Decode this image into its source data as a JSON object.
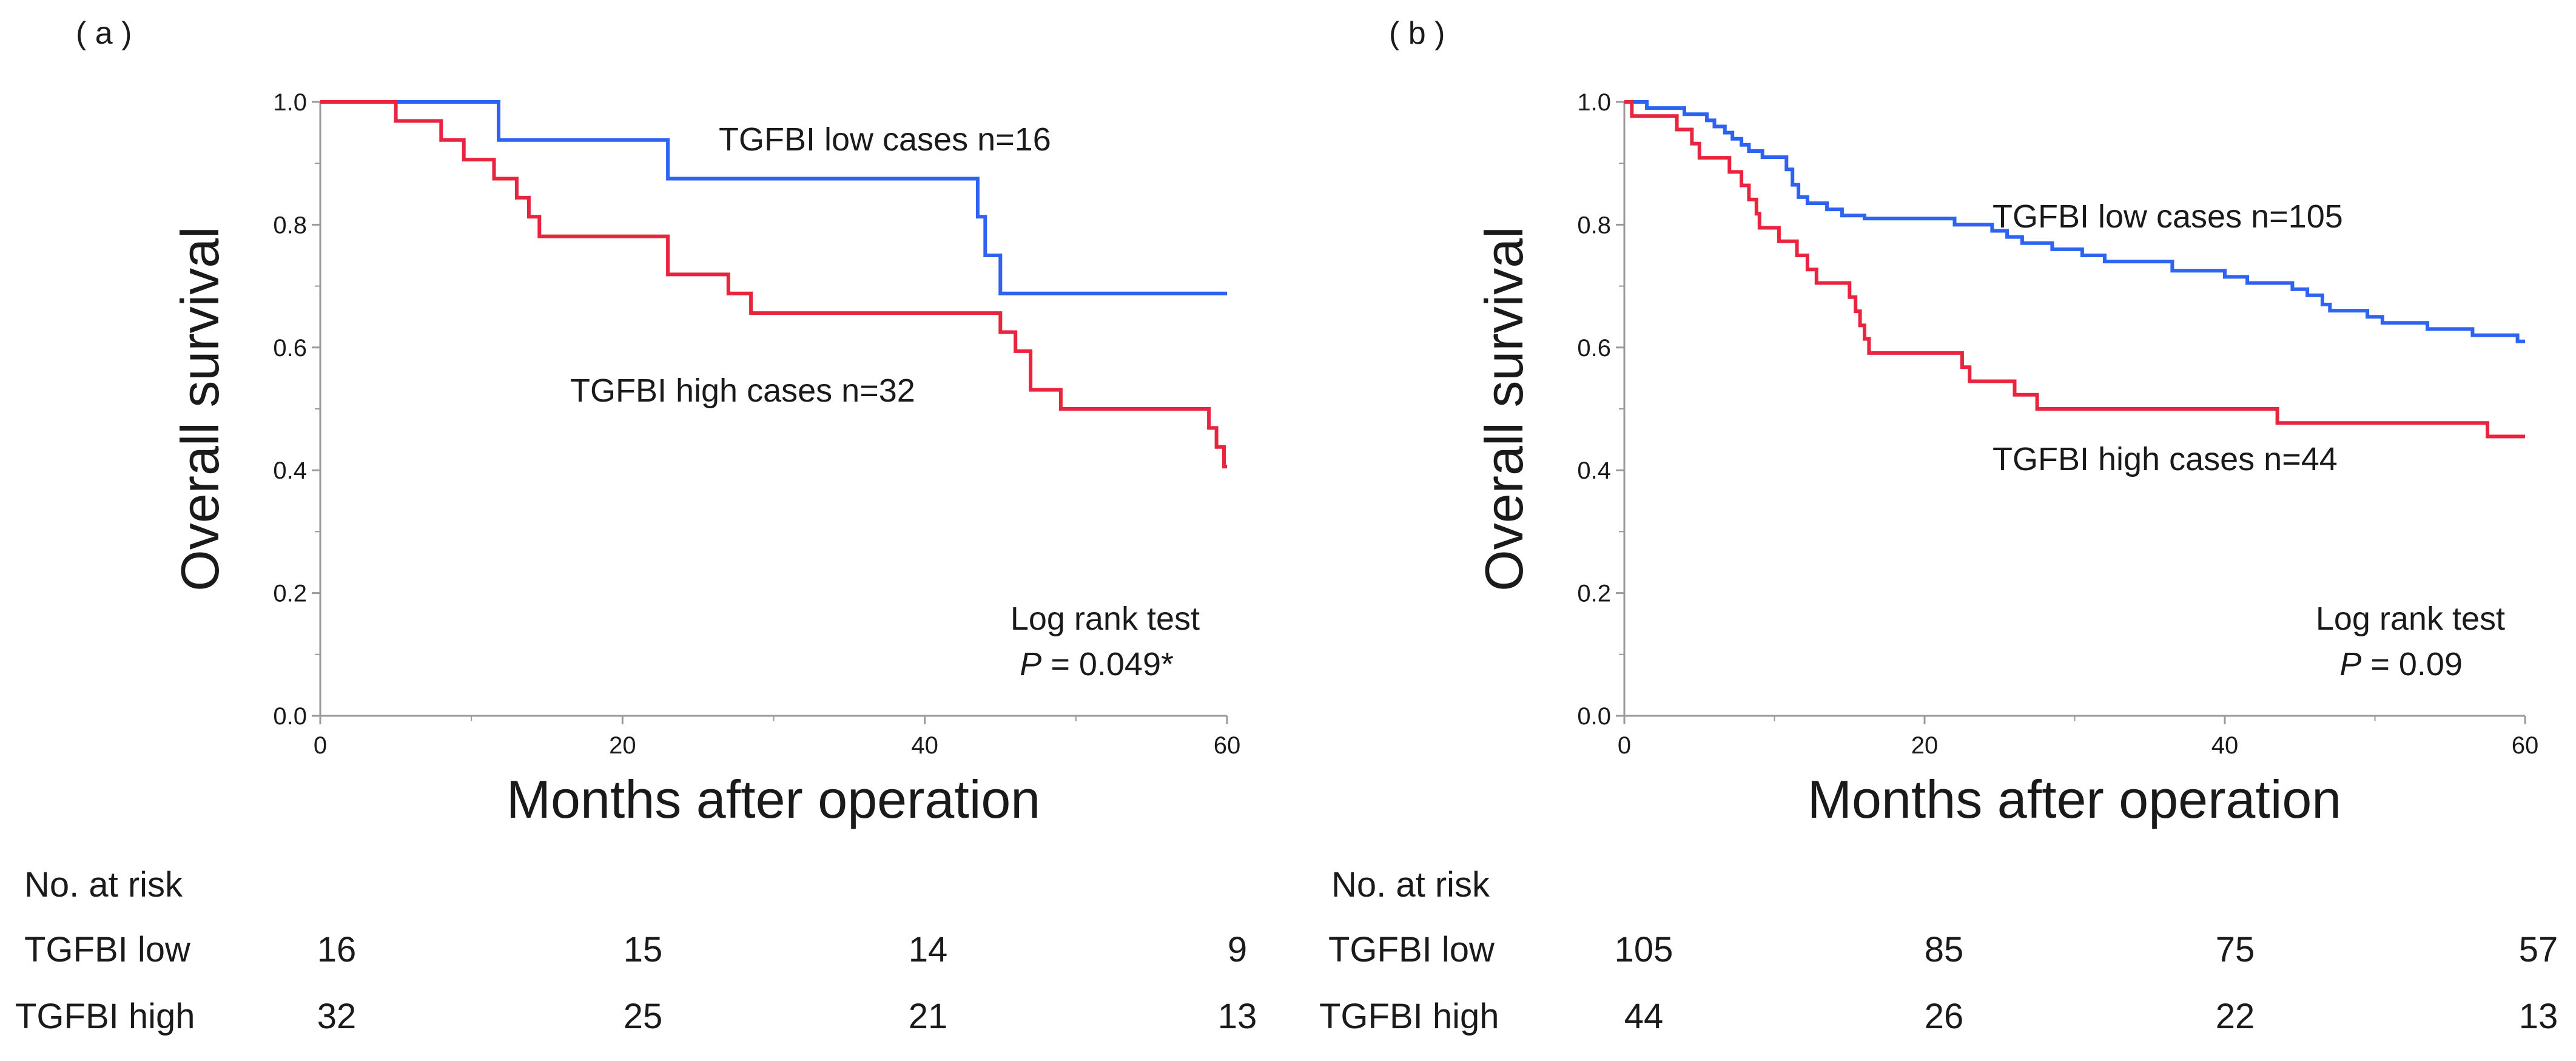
{
  "chart_data": [
    {
      "type": "line",
      "subtype": "kaplan-meier",
      "panel_label": "( a )",
      "xlabel": "Months after operation",
      "ylabel": "Overall survival",
      "xlim": [
        0,
        60
      ],
      "ylim": [
        0,
        1.0
      ],
      "x_ticks": [
        "0",
        "20",
        "40",
        "60"
      ],
      "y_ticks": [
        "0.0",
        "0.2",
        "0.4",
        "0.6",
        "0.8",
        "1.0"
      ],
      "series": [
        {
          "name": "TGFBI low cases n=16",
          "color": "#2e62f2",
          "points": [
            [
              0,
              1.0
            ],
            [
              11.8,
              1.0
            ],
            [
              11.8,
              0.938
            ],
            [
              23,
              0.938
            ],
            [
              23,
              0.875
            ],
            [
              43.5,
              0.875
            ],
            [
              43.5,
              0.813
            ],
            [
              44,
              0.813
            ],
            [
              44,
              0.75
            ],
            [
              45,
              0.75
            ],
            [
              45,
              0.688
            ],
            [
              60,
              0.688
            ]
          ]
        },
        {
          "name": "TGFBI high cases n=32",
          "color": "#e8243f",
          "points": [
            [
              0,
              1.0
            ],
            [
              5,
              1.0
            ],
            [
              5,
              0.969
            ],
            [
              8,
              0.969
            ],
            [
              8,
              0.938
            ],
            [
              9.5,
              0.938
            ],
            [
              9.5,
              0.906
            ],
            [
              11.5,
              0.906
            ],
            [
              11.5,
              0.875
            ],
            [
              13,
              0.875
            ],
            [
              13,
              0.844
            ],
            [
              13.8,
              0.844
            ],
            [
              13.8,
              0.813
            ],
            [
              14.5,
              0.813
            ],
            [
              14.5,
              0.781
            ],
            [
              23,
              0.781
            ],
            [
              23,
              0.719
            ],
            [
              27,
              0.719
            ],
            [
              27,
              0.688
            ],
            [
              28.5,
              0.688
            ],
            [
              28.5,
              0.656
            ],
            [
              45,
              0.656
            ],
            [
              45,
              0.625
            ],
            [
              46,
              0.625
            ],
            [
              46,
              0.594
            ],
            [
              47,
              0.594
            ],
            [
              47,
              0.531
            ],
            [
              49,
              0.531
            ],
            [
              49,
              0.5
            ],
            [
              58.8,
              0.5
            ],
            [
              58.8,
              0.469
            ],
            [
              59.3,
              0.469
            ],
            [
              59.3,
              0.438
            ],
            [
              59.8,
              0.438
            ],
            [
              59.8,
              0.406
            ],
            [
              60,
              0.406
            ]
          ]
        }
      ],
      "annotations": {
        "low_label": "TGFBI low cases n=16",
        "high_label": "TGFBI high cases n=32",
        "test_title": "Log rank test",
        "p_symbol": "P",
        "p_value": " = 0.049*"
      },
      "risk_table": {
        "title": "No. at risk",
        "rows": [
          {
            "label": "TGFBI low",
            "values": [
              "16",
              "15",
              "14",
              "9"
            ]
          },
          {
            "label": "TGFBI high",
            "values": [
              "32",
              "25",
              "21",
              "13"
            ]
          }
        ]
      }
    },
    {
      "type": "line",
      "subtype": "kaplan-meier",
      "panel_label": "( b )",
      "xlabel": "Months after operation",
      "ylabel": "Overall survival",
      "xlim": [
        0,
        60
      ],
      "ylim": [
        0,
        1.0
      ],
      "x_ticks": [
        "0",
        "20",
        "40",
        "60"
      ],
      "y_ticks": [
        "0.0",
        "0.2",
        "0.4",
        "0.6",
        "0.8",
        "1.0"
      ],
      "series": [
        {
          "name": "TGFBI low cases n=105",
          "color": "#2e62f2",
          "points": [
            [
              0,
              1.0
            ],
            [
              1.5,
              1.0
            ],
            [
              1.5,
              0.99
            ],
            [
              4,
              0.99
            ],
            [
              4,
              0.98
            ],
            [
              5.5,
              0.98
            ],
            [
              5.5,
              0.97
            ],
            [
              6,
              0.97
            ],
            [
              6,
              0.96
            ],
            [
              6.7,
              0.96
            ],
            [
              6.7,
              0.95
            ],
            [
              7.2,
              0.95
            ],
            [
              7.2,
              0.94
            ],
            [
              7.8,
              0.94
            ],
            [
              7.8,
              0.93
            ],
            [
              8.3,
              0.93
            ],
            [
              8.3,
              0.92
            ],
            [
              9.2,
              0.92
            ],
            [
              9.2,
              0.91
            ],
            [
              10.8,
              0.91
            ],
            [
              10.8,
              0.89
            ],
            [
              11.2,
              0.89
            ],
            [
              11.2,
              0.865
            ],
            [
              11.6,
              0.865
            ],
            [
              11.6,
              0.845
            ],
            [
              12.2,
              0.845
            ],
            [
              12.2,
              0.835
            ],
            [
              13.5,
              0.835
            ],
            [
              13.5,
              0.825
            ],
            [
              14.5,
              0.825
            ],
            [
              14.5,
              0.815
            ],
            [
              16,
              0.815
            ],
            [
              16,
              0.81
            ],
            [
              22,
              0.81
            ],
            [
              22,
              0.8
            ],
            [
              24.5,
              0.8
            ],
            [
              24.5,
              0.79
            ],
            [
              25.5,
              0.79
            ],
            [
              25.5,
              0.78
            ],
            [
              26.5,
              0.78
            ],
            [
              26.5,
              0.77
            ],
            [
              28.5,
              0.77
            ],
            [
              28.5,
              0.76
            ],
            [
              30.5,
              0.76
            ],
            [
              30.5,
              0.75
            ],
            [
              32,
              0.75
            ],
            [
              32,
              0.74
            ],
            [
              36.5,
              0.74
            ],
            [
              36.5,
              0.725
            ],
            [
              40,
              0.725
            ],
            [
              40,
              0.715
            ],
            [
              41.5,
              0.715
            ],
            [
              41.5,
              0.705
            ],
            [
              44.5,
              0.705
            ],
            [
              44.5,
              0.695
            ],
            [
              45.5,
              0.695
            ],
            [
              45.5,
              0.685
            ],
            [
              46.5,
              0.685
            ],
            [
              46.5,
              0.67
            ],
            [
              47,
              0.67
            ],
            [
              47,
              0.66
            ],
            [
              49.5,
              0.66
            ],
            [
              49.5,
              0.65
            ],
            [
              50.5,
              0.65
            ],
            [
              50.5,
              0.64
            ],
            [
              53.5,
              0.64
            ],
            [
              53.5,
              0.63
            ],
            [
              56.5,
              0.63
            ],
            [
              56.5,
              0.62
            ],
            [
              59.5,
              0.62
            ],
            [
              59.5,
              0.61
            ],
            [
              60,
              0.61
            ]
          ]
        },
        {
          "name": "TGFBI high cases n=44",
          "color": "#e8243f",
          "points": [
            [
              0,
              1.0
            ],
            [
              0.5,
              1.0
            ],
            [
              0.5,
              0.977
            ],
            [
              3.5,
              0.977
            ],
            [
              3.5,
              0.955
            ],
            [
              4.5,
              0.955
            ],
            [
              4.5,
              0.932
            ],
            [
              5,
              0.932
            ],
            [
              5,
              0.909
            ],
            [
              7,
              0.909
            ],
            [
              7,
              0.886
            ],
            [
              7.8,
              0.886
            ],
            [
              7.8,
              0.864
            ],
            [
              8.3,
              0.864
            ],
            [
              8.3,
              0.841
            ],
            [
              8.8,
              0.841
            ],
            [
              8.8,
              0.818
            ],
            [
              9,
              0.818
            ],
            [
              9,
              0.795
            ],
            [
              10.3,
              0.795
            ],
            [
              10.3,
              0.773
            ],
            [
              11.5,
              0.773
            ],
            [
              11.5,
              0.75
            ],
            [
              12.2,
              0.75
            ],
            [
              12.2,
              0.727
            ],
            [
              12.8,
              0.727
            ],
            [
              12.8,
              0.705
            ],
            [
              15,
              0.705
            ],
            [
              15,
              0.682
            ],
            [
              15.4,
              0.682
            ],
            [
              15.4,
              0.659
            ],
            [
              15.7,
              0.659
            ],
            [
              15.7,
              0.636
            ],
            [
              16,
              0.636
            ],
            [
              16,
              0.614
            ],
            [
              16.3,
              0.614
            ],
            [
              16.3,
              0.591
            ],
            [
              22.5,
              0.591
            ],
            [
              22.5,
              0.568
            ],
            [
              23,
              0.568
            ],
            [
              23,
              0.545
            ],
            [
              26,
              0.545
            ],
            [
              26,
              0.523
            ],
            [
              27.5,
              0.523
            ],
            [
              27.5,
              0.5
            ],
            [
              43.5,
              0.5
            ],
            [
              43.5,
              0.477
            ],
            [
              57.5,
              0.477
            ],
            [
              57.5,
              0.455
            ],
            [
              60,
              0.455
            ]
          ]
        }
      ],
      "annotations": {
        "low_label": "TGFBI low cases n=105",
        "high_label": "TGFBI high cases n=44",
        "test_title": "Log rank test",
        "p_symbol": "P",
        "p_value": " = 0.09"
      },
      "risk_table": {
        "title": "No. at risk",
        "rows": [
          {
            "label": "TGFBI low",
            "values": [
              "105",
              "85",
              "75",
              "57"
            ]
          },
          {
            "label": "TGFBI high",
            "values": [
              "44",
              "26",
              "22",
              "13"
            ]
          }
        ]
      }
    }
  ]
}
